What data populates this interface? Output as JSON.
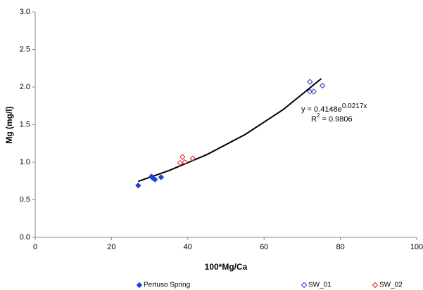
{
  "chart_data": {
    "type": "scatter",
    "x_label": "100*Mg/Ca",
    "y_label": "Mg (mg/l)",
    "xlim": [
      0,
      100
    ],
    "xticks": [
      0,
      20,
      40,
      60,
      80,
      100
    ],
    "ylim": [
      0,
      3
    ],
    "yticks": [
      {
        "value": 0,
        "label": "0.0"
      },
      {
        "value": 0.5,
        "label": "0.5"
      },
      {
        "value": 1,
        "label": "1.0"
      },
      {
        "value": 1.5,
        "label": "1.5"
      },
      {
        "value": 2,
        "label": "2.0"
      },
      {
        "value": 2.5,
        "label": "2.5"
      },
      {
        "value": 3,
        "label": "3.0"
      }
    ],
    "grid": false,
    "legend": "bottom",
    "series": [
      {
        "name": "Pertuso Spring",
        "color": "#1f3fd6",
        "marker": "filled-diamond",
        "x": [
          27,
          30.5,
          30.8,
          31.4,
          33
        ],
        "values": [
          0.69,
          0.81,
          0.79,
          0.77,
          0.8
        ]
      },
      {
        "name": "SW_01",
        "color": "#3333cc",
        "marker": "open-diamond",
        "x": [
          72,
          72,
          73,
          75.3
        ],
        "values": [
          2.07,
          1.94,
          1.94,
          2.02
        ]
      },
      {
        "name": "SW_02",
        "color": "#e02020",
        "marker": "open-diamond",
        "x": [
          38,
          38.6,
          39.2,
          41.3
        ],
        "values": [
          0.99,
          1.07,
          1.0,
          1.05
        ]
      }
    ],
    "trendline": {
      "color": "#000000",
      "x": [
        27,
        35,
        45,
        55,
        65,
        75
      ],
      "values": [
        0.745,
        0.887,
        1.101,
        1.368,
        1.7,
        2.112
      ],
      "equation": {
        "base": "y = 0.4148e",
        "exponent": "0.0217x"
      },
      "r_squared": {
        "base": "R",
        "exponent": "2",
        "rest": " = 0.9806"
      }
    }
  }
}
